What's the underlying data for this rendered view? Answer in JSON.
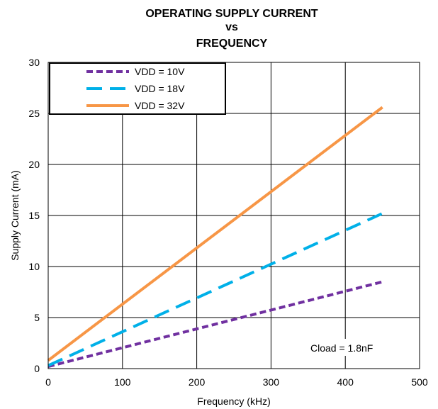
{
  "chart_data": {
    "type": "line",
    "title_lines": [
      "OPERATING SUPPLY CURRENT",
      "vs",
      "FREQUENCY"
    ],
    "xlabel": "Frequency (kHz)",
    "ylabel": "Supply Current (mA)",
    "xlim": [
      0,
      500
    ],
    "ylim": [
      0,
      30
    ],
    "xticks": [
      0,
      100,
      200,
      300,
      400,
      500
    ],
    "yticks": [
      0,
      5,
      10,
      15,
      20,
      25,
      30
    ],
    "grid": true,
    "legend_position": "top-left",
    "annotation": "Cload = 1.8nF",
    "series": [
      {
        "name": "VDD = 10V",
        "color": "#7030a0",
        "style": "dotted",
        "x": [
          0,
          450
        ],
        "y": [
          0.2,
          8.5
        ]
      },
      {
        "name": "VDD = 18V",
        "color": "#00b0e8",
        "style": "dashed",
        "x": [
          0,
          450
        ],
        "y": [
          0.3,
          15.2
        ]
      },
      {
        "name": "VDD = 32V",
        "color": "#f79646",
        "style": "solid",
        "x": [
          0,
          450
        ],
        "y": [
          0.8,
          25.6
        ]
      }
    ]
  }
}
